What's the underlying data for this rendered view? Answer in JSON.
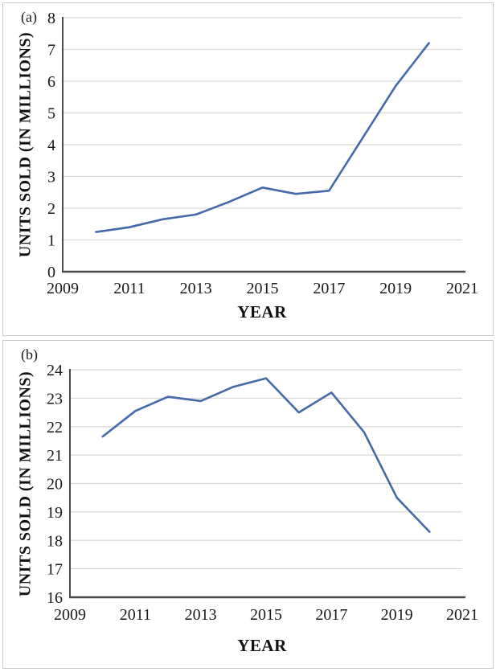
{
  "figure": {
    "background": "#ffffff",
    "panel_border_color": "#c9c9c9",
    "gridline_color": "#d9d9d9",
    "axis_color": "#4a4a4a"
  },
  "chart_data": [
    {
      "type": "line",
      "tag": "(a)",
      "xlabel": "YEAR",
      "ylabel": "UNITS SOLD (IN MILLIONS)",
      "x": [
        2010,
        2011,
        2012,
        2013,
        2014,
        2015,
        2016,
        2017,
        2018,
        2019,
        2020
      ],
      "values": [
        1.25,
        1.4,
        1.65,
        1.8,
        2.2,
        2.65,
        2.45,
        2.55,
        4.2,
        5.85,
        7.2
      ],
      "xlim": [
        2009,
        2021
      ],
      "ylim": [
        0,
        8
      ],
      "xtick_step": 2,
      "ytick_step": 1,
      "xticks": [
        2009,
        2011,
        2013,
        2015,
        2017,
        2019,
        2021
      ],
      "yticks": [
        0,
        1,
        2,
        3,
        4,
        5,
        6,
        7,
        8
      ],
      "grid": true,
      "legend": "none",
      "line_color": "#4569a9"
    },
    {
      "type": "line",
      "tag": "(b)",
      "xlabel": "YEAR",
      "ylabel": "UNITS SOLD (IN MILLIONS)",
      "x": [
        2010,
        2011,
        2012,
        2013,
        2014,
        2015,
        2016,
        2017,
        2018,
        2019,
        2020
      ],
      "values": [
        21.65,
        22.55,
        23.05,
        22.9,
        23.4,
        23.7,
        22.5,
        23.2,
        21.8,
        19.5,
        18.3
      ],
      "xlim": [
        2009,
        2021
      ],
      "ylim": [
        16,
        24
      ],
      "xtick_step": 2,
      "ytick_step": 1,
      "xticks": [
        2009,
        2011,
        2013,
        2015,
        2017,
        2019,
        2021
      ],
      "yticks": [
        16,
        17,
        18,
        19,
        20,
        21,
        22,
        23,
        24
      ],
      "grid": true,
      "legend": "none",
      "line_color": "#4569a9"
    }
  ]
}
